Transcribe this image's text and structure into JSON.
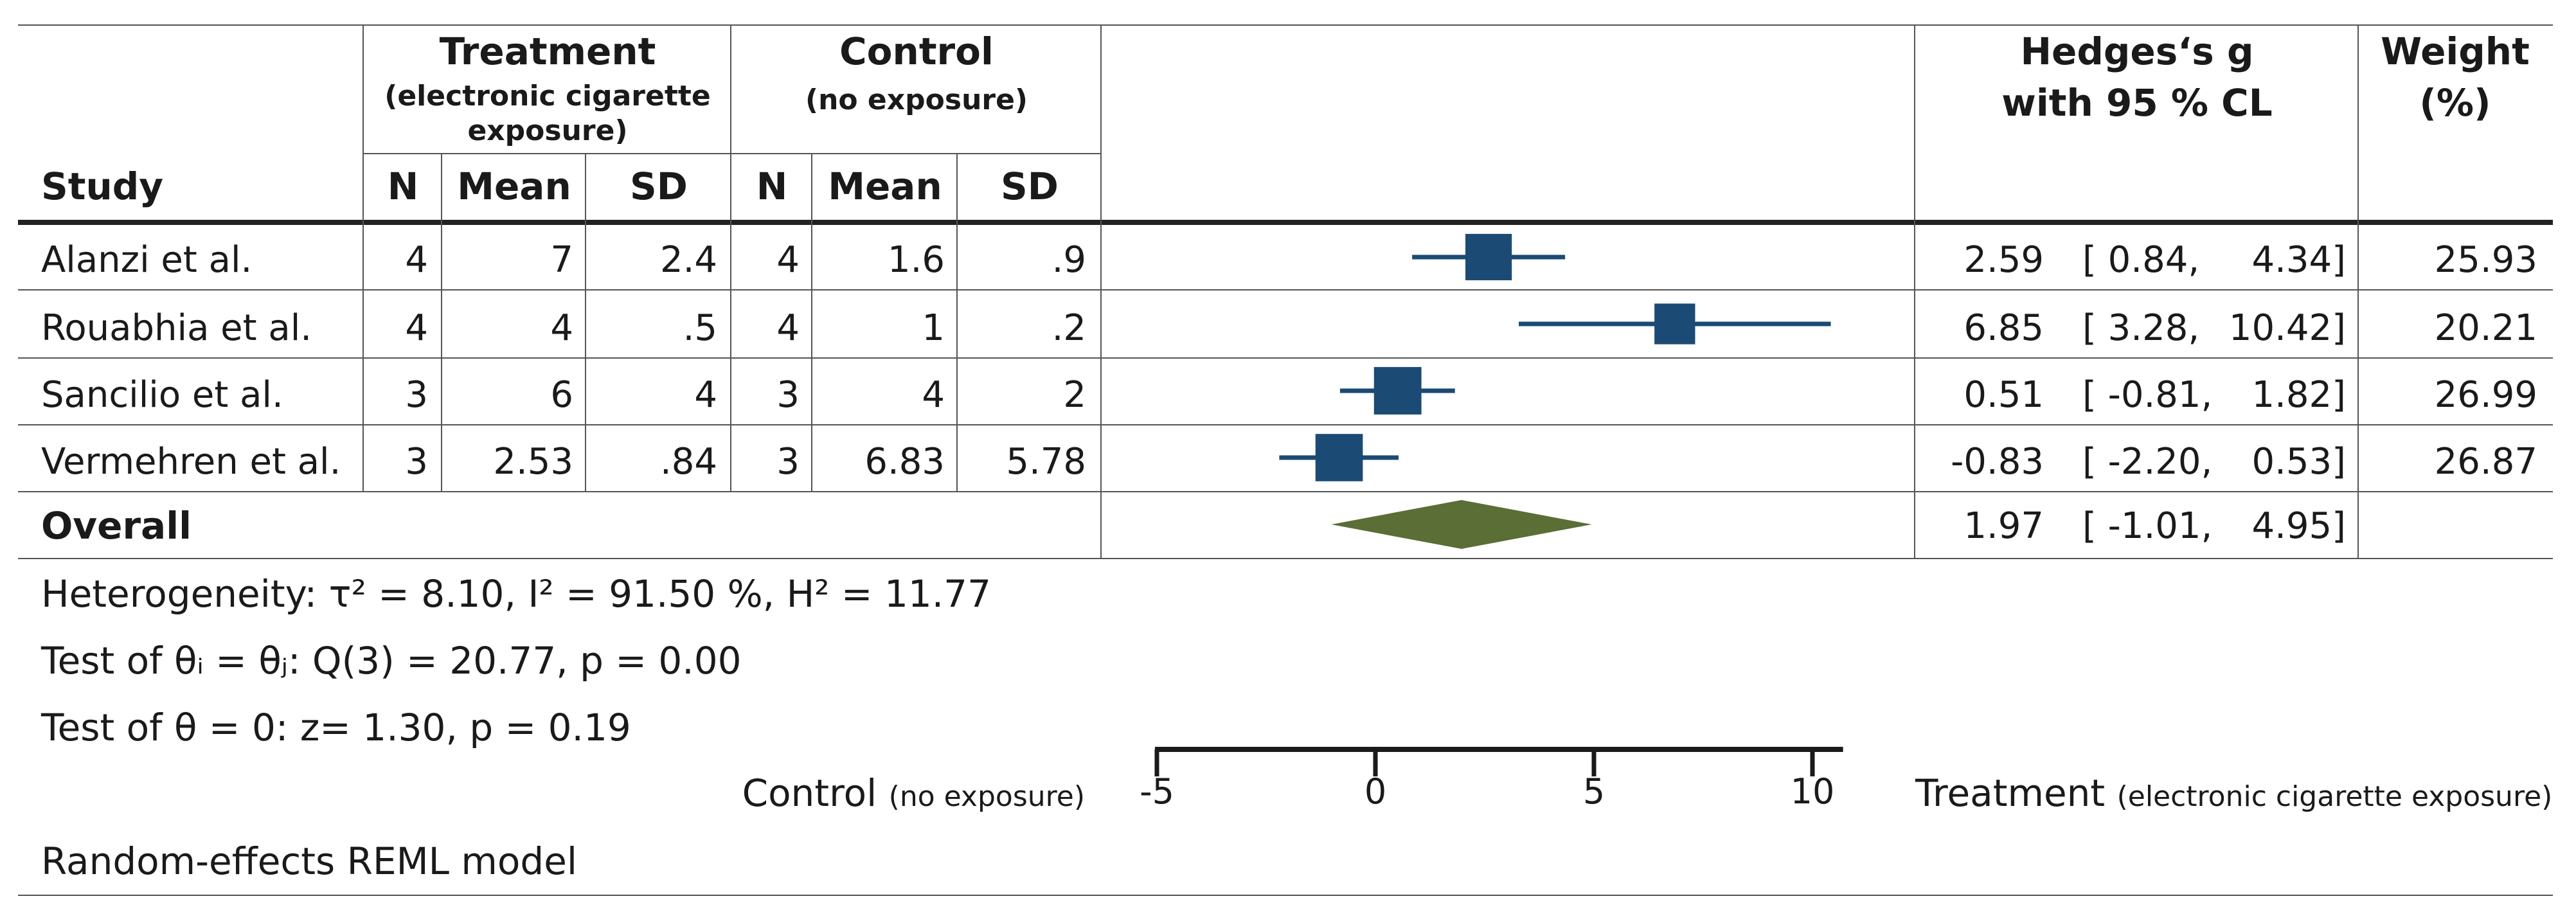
{
  "headers": {
    "treatment": {
      "title": "Treatment",
      "sub_line1": "(electronic cigarette",
      "sub_line2": "exposure)"
    },
    "control": {
      "title": "Control",
      "sub": "(no exposure)"
    },
    "effect": {
      "line1": "Hedges‘s g",
      "line2": "with 95 % CL"
    },
    "weight": {
      "line1": "Weight",
      "line2": "(%)"
    },
    "columns": {
      "study": "Study",
      "n": "N",
      "mean": "Mean",
      "sd": "SD"
    }
  },
  "studies": [
    {
      "study": "Alanzi et al.",
      "t_n": "4",
      "t_mean": "7",
      "t_sd": "2.4",
      "c_n": "4",
      "c_mean": "1.6",
      "c_sd": ".9",
      "g": "2.59",
      "lo": "[ 0.84,",
      "hi": "4.34]",
      "weight": "25.93"
    },
    {
      "study": "Rouabhia et al.",
      "t_n": "4",
      "t_mean": "4",
      "t_sd": ".5",
      "c_n": "4",
      "c_mean": "1",
      "c_sd": ".2",
      "g": "6.85",
      "lo": "[ 3.28,",
      "hi": "10.42]",
      "weight": "20.21"
    },
    {
      "study": "Sancilio et al.",
      "t_n": "3",
      "t_mean": "6",
      "t_sd": "4",
      "c_n": "3",
      "c_mean": "4",
      "c_sd": "2",
      "g": "0.51",
      "lo": "[ -0.81,",
      "hi": "1.82]",
      "weight": "26.99"
    },
    {
      "study": "Vermehren et al.",
      "t_n": "3",
      "t_mean": "2.53",
      "t_sd": ".84",
      "c_n": "3",
      "c_mean": "6.83",
      "c_sd": "5.78",
      "g": "-0.83",
      "lo": "[ -2.20,",
      "hi": "0.53]",
      "weight": "26.87"
    }
  ],
  "overall": {
    "label": "Overall",
    "g": "1.97",
    "lo": "[ -1.01,",
    "hi": "4.95]"
  },
  "stats": {
    "heterogeneity": "Heterogeneity: τ² = 8.10,  I² = 91.50 %, H² = 11.77",
    "test_equal": "Test of θᵢ = θⱼ: Q(3) = 20.77, p = 0.00",
    "test_zero": "Test of θ = 0: z= 1.30, p = 0.19",
    "model": "Random-effects REML model"
  },
  "axis": {
    "left_label": "Control",
    "left_sub": "(no exposure)",
    "right_label": "Treatment",
    "right_sub": "(electronic cigarette exposure)",
    "tick_labels": [
      "-5",
      "0",
      "5",
      "10"
    ]
  },
  "chart_data": {
    "type": "scatter",
    "subtype": "forest-plot",
    "xlim": [
      -5,
      10.7
    ],
    "xticks": [
      -5,
      0,
      5,
      10
    ],
    "points": [
      {
        "study": "Alanzi et al.",
        "g": 2.59,
        "lo": 0.84,
        "hi": 4.34,
        "weight": 25.93
      },
      {
        "study": "Rouabhia et al.",
        "g": 6.85,
        "lo": 3.28,
        "hi": 10.42,
        "weight": 20.21
      },
      {
        "study": "Sancilio et al.",
        "g": 0.51,
        "lo": -0.81,
        "hi": 1.82,
        "weight": 26.99
      },
      {
        "study": "Vermehren et al.",
        "g": -0.83,
        "lo": -2.2,
        "hi": 0.53,
        "weight": 26.87
      }
    ],
    "overall": {
      "g": 1.97,
      "lo": -1.01,
      "hi": 4.95
    },
    "colors": {
      "study": "#1b4a74",
      "overall": "#5a6e35"
    }
  }
}
